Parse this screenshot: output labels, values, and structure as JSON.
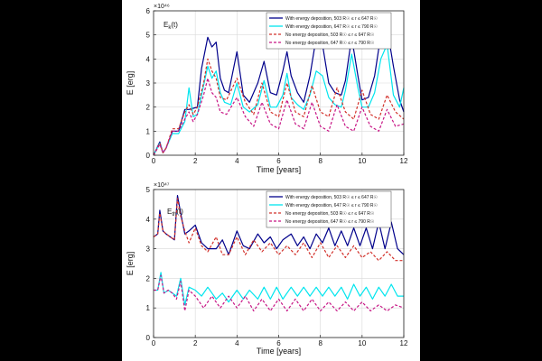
{
  "chart_data": [
    {
      "type": "line",
      "title": "E_k(t)",
      "multiplier": "×10⁴⁶",
      "xlabel": "Time [years]",
      "ylabel": "E [erg]",
      "xlim": [
        0,
        12
      ],
      "ylim": [
        0,
        6
      ],
      "xticks": [
        "0",
        "2",
        "4",
        "6",
        "8",
        "10",
        "12"
      ],
      "yticks": [
        "0",
        "1",
        "2",
        "3",
        "4",
        "5",
        "6"
      ],
      "grid": true,
      "legend_position": "top-right",
      "series": [
        {
          "name": "With energy deposition, 503 R☉ ≤ r ≤ 647 R☉",
          "color": "#00008b",
          "dash": "solid",
          "x": [
            0,
            0.3,
            0.45,
            0.6,
            0.9,
            1.2,
            1.5,
            1.7,
            1.9,
            2.1,
            2.3,
            2.6,
            2.8,
            3.0,
            3.2,
            3.4,
            3.6,
            4.0,
            4.3,
            4.6,
            5.0,
            5.3,
            5.6,
            5.9,
            6.2,
            6.4,
            6.6,
            6.9,
            7.2,
            7.5,
            7.8,
            8.1,
            8.4,
            8.7,
            9.0,
            9.2,
            9.5,
            9.8,
            10.0,
            10.3,
            10.6,
            10.9,
            11.2,
            11.5,
            11.8,
            12.0
          ],
          "values": [
            0,
            0.55,
            0.1,
            0.3,
            1.0,
            1.0,
            1.9,
            1.9,
            1.95,
            2.0,
            3.6,
            4.9,
            4.5,
            4.7,
            3.2,
            2.7,
            2.6,
            4.3,
            2.5,
            2.2,
            3.0,
            3.9,
            2.6,
            2.5,
            3.5,
            4.3,
            3.3,
            2.6,
            2.2,
            3.3,
            4.9,
            4.6,
            3.0,
            2.6,
            2.5,
            3.1,
            4.9,
            3.3,
            2.3,
            2.4,
            3.3,
            5.0,
            5.3,
            3.7,
            2.3,
            1.8
          ]
        },
        {
          "name": "With energy deposition, 647 R☉ ≤ r ≤ 790 R☉",
          "color": "#00e5ee",
          "dash": "solid",
          "x": [
            0,
            0.3,
            0.45,
            0.6,
            0.9,
            1.2,
            1.5,
            1.7,
            1.9,
            2.1,
            2.4,
            2.6,
            2.8,
            3.0,
            3.2,
            3.4,
            3.7,
            4.0,
            4.3,
            4.6,
            5.0,
            5.3,
            5.6,
            5.9,
            6.2,
            6.4,
            6.6,
            6.9,
            7.2,
            7.5,
            7.8,
            8.1,
            8.4,
            8.7,
            9.0,
            9.2,
            9.5,
            9.8,
            10.0,
            10.3,
            10.6,
            10.9,
            11.2,
            11.5,
            11.8,
            12.0
          ],
          "values": [
            0,
            0.5,
            0.1,
            0.3,
            0.9,
            0.9,
            1.4,
            2.8,
            1.6,
            1.7,
            2.9,
            3.7,
            3.2,
            3.5,
            2.6,
            2.2,
            2.1,
            3.0,
            2.0,
            1.8,
            2.1,
            3.1,
            2.0,
            2.0,
            2.5,
            3.4,
            2.4,
            2.1,
            1.9,
            2.5,
            3.5,
            3.3,
            2.4,
            2.1,
            2.0,
            2.7,
            4.2,
            2.8,
            2.0,
            2.0,
            2.6,
            4.0,
            4.6,
            2.5,
            2.0,
            2.8
          ]
        },
        {
          "name": "No energy deposition, 503 R☉ ≤ r ≤ 647 R☉",
          "color": "#d2302a",
          "dash": "dashed",
          "x": [
            0,
            0.3,
            0.45,
            0.6,
            0.9,
            1.2,
            1.5,
            1.7,
            1.9,
            2.1,
            2.4,
            2.6,
            2.8,
            3.0,
            3.2,
            3.5,
            4.0,
            4.4,
            4.8,
            5.2,
            5.6,
            6.0,
            6.4,
            6.8,
            7.2,
            7.6,
            8.0,
            8.4,
            8.8,
            9.2,
            9.6,
            10.0,
            10.4,
            10.8,
            11.2,
            11.6,
            12.0
          ],
          "values": [
            0,
            0.5,
            0.1,
            0.3,
            1.1,
            1.1,
            1.8,
            2.1,
            1.7,
            2.0,
            3.0,
            4.0,
            3.5,
            3.2,
            2.4,
            2.3,
            3.2,
            2.2,
            1.7,
            3.0,
            1.8,
            1.6,
            3.0,
            1.8,
            1.6,
            2.9,
            1.8,
            1.6,
            2.8,
            1.8,
            1.5,
            2.7,
            1.7,
            1.5,
            2.5,
            1.8,
            1.5
          ]
        },
        {
          "name": "No energy deposition, 647 R☉ ≤ r ≤ 790 R☉",
          "color": "#c71585",
          "dash": "dashed",
          "x": [
            0,
            0.3,
            0.45,
            0.6,
            0.9,
            1.2,
            1.5,
            1.7,
            1.9,
            2.1,
            2.4,
            2.6,
            2.8,
            3.0,
            3.2,
            3.5,
            4.0,
            4.4,
            4.8,
            5.2,
            5.6,
            6.0,
            6.4,
            6.8,
            7.2,
            7.6,
            8.0,
            8.4,
            8.8,
            9.2,
            9.6,
            10.0,
            10.4,
            10.8,
            11.2,
            11.6,
            12.0
          ],
          "values": [
            0,
            0.45,
            0.1,
            0.3,
            1.0,
            1.0,
            1.5,
            1.8,
            1.4,
            1.7,
            2.5,
            3.2,
            2.6,
            2.4,
            1.8,
            1.7,
            2.4,
            1.6,
            1.2,
            2.2,
            1.3,
            1.1,
            2.3,
            1.3,
            1.1,
            2.2,
            1.2,
            1.0,
            2.1,
            1.2,
            1.0,
            2.0,
            1.2,
            1.0,
            1.9,
            1.2,
            1.3
          ]
        }
      ]
    },
    {
      "type": "line",
      "title": "E_th(t)",
      "multiplier": "×10⁴⁷",
      "xlabel": "Time [years]",
      "ylabel": "E [erg]",
      "xlim": [
        0,
        12
      ],
      "ylim": [
        0,
        5
      ],
      "xticks": [
        "0",
        "2",
        "4",
        "6",
        "8",
        "10",
        "12"
      ],
      "yticks": [
        "0",
        "1",
        "2",
        "3",
        "4",
        "5"
      ],
      "grid": true,
      "legend_position": "top-right",
      "series": [
        {
          "name": "With energy deposition, 503 R☉ ≤ r ≤ 647 R☉",
          "color": "#00008b",
          "dash": "solid",
          "x": [
            0,
            0.2,
            0.3,
            0.45,
            0.6,
            0.8,
            1.0,
            1.15,
            1.3,
            1.5,
            1.7,
            2.0,
            2.3,
            2.6,
            3.0,
            3.3,
            3.6,
            4.0,
            4.3,
            4.6,
            5.0,
            5.3,
            5.6,
            5.9,
            6.2,
            6.6,
            6.9,
            7.2,
            7.5,
            7.8,
            8.1,
            8.4,
            8.7,
            9.0,
            9.3,
            9.6,
            9.9,
            10.2,
            10.5,
            10.8,
            11.1,
            11.4,
            11.7,
            12.0
          ],
          "values": [
            3.4,
            3.5,
            4.3,
            3.6,
            3.5,
            3.4,
            3.3,
            4.8,
            4.2,
            3.5,
            3.6,
            3.8,
            3.2,
            3.0,
            3.0,
            3.3,
            2.8,
            3.6,
            3.1,
            3.0,
            3.5,
            3.2,
            3.4,
            3.0,
            3.3,
            3.5,
            3.1,
            3.4,
            3.0,
            3.5,
            3.2,
            3.7,
            3.1,
            3.6,
            3.1,
            3.7,
            3.1,
            3.7,
            3.0,
            3.9,
            3.0,
            3.9,
            3.0,
            2.8
          ]
        },
        {
          "name": "With energy deposition, 647 R☉ ≤ r ≤ 790 R☉",
          "color": "#00e5ee",
          "dash": "solid",
          "x": [
            0,
            0.2,
            0.35,
            0.5,
            0.7,
            0.9,
            1.1,
            1.3,
            1.5,
            1.7,
            2.0,
            2.3,
            2.6,
            3.0,
            3.3,
            3.6,
            4.0,
            4.3,
            4.6,
            5.0,
            5.3,
            5.6,
            5.9,
            6.2,
            6.6,
            6.9,
            7.2,
            7.5,
            7.8,
            8.1,
            8.4,
            8.7,
            9.0,
            9.3,
            9.6,
            9.9,
            10.2,
            10.5,
            10.8,
            11.1,
            11.4,
            11.7,
            12.0
          ],
          "values": [
            1.6,
            1.6,
            2.2,
            1.5,
            1.6,
            1.5,
            1.4,
            2.0,
            1.1,
            1.7,
            1.6,
            1.4,
            1.7,
            1.3,
            1.5,
            1.2,
            1.6,
            1.3,
            1.6,
            1.3,
            1.7,
            1.3,
            1.7,
            1.3,
            1.7,
            1.4,
            1.7,
            1.4,
            1.7,
            1.4,
            1.7,
            1.4,
            1.7,
            1.3,
            1.8,
            1.4,
            1.7,
            1.3,
            1.7,
            1.4,
            1.8,
            1.4,
            1.4
          ]
        },
        {
          "name": "No energy deposition, 503 R☉ ≤ r ≤ 647 R☉",
          "color": "#d2302a",
          "dash": "dashed",
          "x": [
            0,
            0.2,
            0.3,
            0.45,
            0.6,
            0.8,
            1.0,
            1.15,
            1.3,
            1.5,
            1.7,
            2.0,
            2.3,
            2.6,
            3.0,
            3.3,
            3.6,
            4.0,
            4.4,
            4.8,
            5.2,
            5.6,
            6.0,
            6.4,
            6.8,
            7.2,
            7.6,
            8.0,
            8.4,
            8.8,
            9.2,
            9.6,
            10.0,
            10.4,
            10.8,
            11.2,
            11.6,
            12.0
          ],
          "values": [
            3.4,
            3.5,
            4.2,
            3.6,
            3.5,
            3.4,
            3.3,
            4.7,
            4.1,
            3.6,
            3.2,
            3.7,
            3.1,
            2.9,
            3.4,
            2.8,
            2.8,
            3.4,
            2.8,
            3.3,
            2.9,
            3.2,
            2.8,
            3.1,
            2.8,
            3.2,
            2.7,
            3.2,
            2.7,
            3.1,
            2.7,
            3.1,
            2.7,
            2.9,
            2.6,
            2.9,
            2.6,
            2.6
          ]
        },
        {
          "name": "No energy deposition, 647 R☉ ≤ r ≤ 790 R☉",
          "color": "#c71585",
          "dash": "dashed",
          "x": [
            0,
            0.2,
            0.35,
            0.5,
            0.7,
            0.9,
            1.1,
            1.3,
            1.5,
            1.7,
            2.0,
            2.4,
            2.8,
            3.2,
            3.6,
            4.0,
            4.4,
            4.8,
            5.2,
            5.6,
            6.0,
            6.4,
            6.8,
            7.2,
            7.6,
            8.0,
            8.4,
            8.8,
            9.2,
            9.6,
            10.0,
            10.4,
            10.8,
            11.2,
            11.6,
            12.0
          ],
          "values": [
            1.6,
            1.6,
            2.1,
            1.5,
            1.6,
            1.5,
            1.3,
            1.9,
            0.9,
            1.6,
            1.4,
            1.0,
            1.4,
            1.0,
            1.4,
            1.0,
            1.4,
            0.9,
            1.3,
            0.9,
            1.3,
            0.9,
            1.3,
            0.9,
            1.3,
            0.9,
            1.2,
            0.9,
            1.2,
            0.9,
            1.2,
            0.9,
            1.1,
            0.9,
            1.1,
            1.0
          ]
        }
      ]
    }
  ]
}
